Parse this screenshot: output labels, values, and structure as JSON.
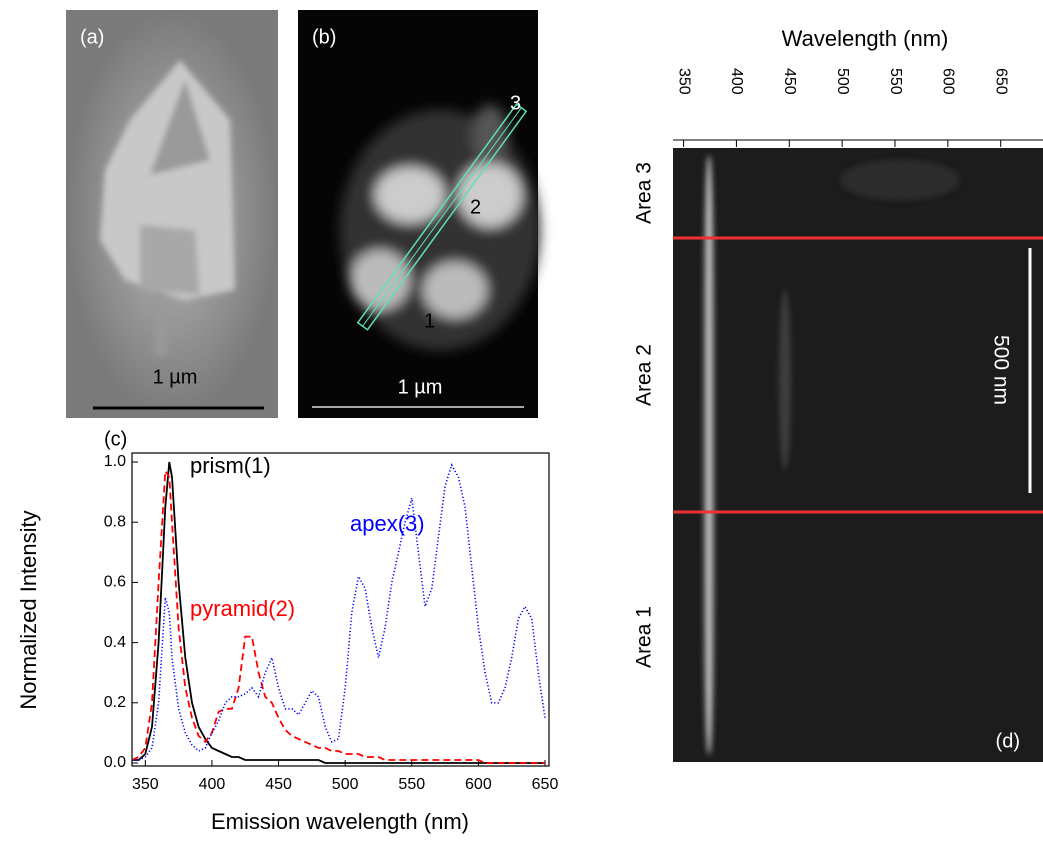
{
  "panels": {
    "a": {
      "label": "(a)",
      "scale_bar": "1 µm"
    },
    "b": {
      "label": "(b)",
      "scale_bar": "1 µm",
      "points": [
        "1",
        "2",
        "3"
      ]
    }
  },
  "chart_data": [
    {
      "type": "line",
      "label": "(c)",
      "xlabel": "Emission wavelength (nm)",
      "ylabel": "Normalized Intensity",
      "xlim": [
        340,
        653
      ],
      "xticks": [
        350,
        400,
        450,
        500,
        550,
        600,
        650
      ],
      "ylim": [
        -0.01,
        1.03
      ],
      "yticks": [
        {
          "value": 0,
          "label": "0.0"
        },
        0.2,
        0.4,
        0.6,
        0.8,
        {
          "value": 1,
          "label": "1.0"
        }
      ],
      "x": [
        340,
        345,
        350,
        355,
        360,
        365,
        368,
        370,
        375,
        380,
        385,
        390,
        395,
        400,
        405,
        410,
        415,
        420,
        425,
        430,
        435,
        440,
        445,
        450,
        455,
        460,
        465,
        470,
        475,
        480,
        485,
        490,
        495,
        500,
        505,
        510,
        515,
        520,
        525,
        530,
        535,
        540,
        545,
        550,
        555,
        560,
        565,
        570,
        575,
        580,
        585,
        590,
        595,
        600,
        605,
        610,
        615,
        620,
        625,
        630,
        635,
        640,
        645,
        650
      ],
      "series": [
        {
          "name": "prism(1)",
          "color": "#000000",
          "style": "solid",
          "values": [
            0.01,
            0.01,
            0.03,
            0.12,
            0.4,
            0.85,
            1.0,
            0.95,
            0.6,
            0.35,
            0.2,
            0.12,
            0.08,
            0.05,
            0.04,
            0.03,
            0.02,
            0.02,
            0.01,
            0.01,
            0.01,
            0.01,
            0.01,
            0.01,
            0.01,
            0.01,
            0.01,
            0.01,
            0.01,
            0.01,
            0,
            0,
            0,
            0,
            0,
            0,
            0,
            0,
            0,
            0,
            0,
            0,
            0,
            0,
            0,
            0,
            0,
            0,
            0,
            0,
            0,
            0,
            0,
            0,
            0,
            0,
            0,
            0,
            0,
            0,
            0,
            0,
            0,
            0
          ]
        },
        {
          "name": "pyramid(2)",
          "color": "#ff0000",
          "style": "dashed",
          "values": [
            0.01,
            0.02,
            0.05,
            0.2,
            0.6,
            0.97,
            0.95,
            0.8,
            0.45,
            0.25,
            0.15,
            0.09,
            0.07,
            0.1,
            0.17,
            0.18,
            0.18,
            0.25,
            0.42,
            0.42,
            0.3,
            0.22,
            0.2,
            0.15,
            0.11,
            0.09,
            0.08,
            0.07,
            0.06,
            0.05,
            0.05,
            0.04,
            0.04,
            0.03,
            0.03,
            0.03,
            0.02,
            0.02,
            0.02,
            0.01,
            0.01,
            0.01,
            0.01,
            0.01,
            0.01,
            0.01,
            0.01,
            0.01,
            0.01,
            0.01,
            0.01,
            0.01,
            0.01,
            0.01,
            0,
            0,
            0,
            0,
            0,
            0,
            0,
            0,
            0,
            0
          ]
        },
        {
          "name": "apex(3)",
          "color": "#0000ff",
          "style": "dotted",
          "values": [
            0.01,
            0.01,
            0.02,
            0.05,
            0.2,
            0.55,
            0.5,
            0.35,
            0.18,
            0.1,
            0.06,
            0.04,
            0.05,
            0.1,
            0.14,
            0.2,
            0.22,
            0.22,
            0.23,
            0.25,
            0.22,
            0.3,
            0.35,
            0.25,
            0.18,
            0.18,
            0.16,
            0.2,
            0.24,
            0.22,
            0.12,
            0.07,
            0.08,
            0.25,
            0.5,
            0.62,
            0.58,
            0.45,
            0.35,
            0.45,
            0.6,
            0.7,
            0.8,
            0.88,
            0.7,
            0.52,
            0.58,
            0.75,
            0.92,
            0.99,
            0.95,
            0.85,
            0.65,
            0.45,
            0.3,
            0.2,
            0.2,
            0.25,
            0.35,
            0.48,
            0.52,
            0.48,
            0.3,
            0.15
          ]
        }
      ]
    },
    {
      "type": "spectral-image",
      "label": "(d)",
      "xlabel": "Wavelength (nm)",
      "xlim": [
        340,
        690
      ],
      "xticks": [
        350,
        400,
        450,
        500,
        550,
        600,
        650
      ],
      "area_labels": [
        "Area 3",
        "Area 2",
        "Area 1"
      ],
      "scale_bar": "500 nm"
    }
  ]
}
